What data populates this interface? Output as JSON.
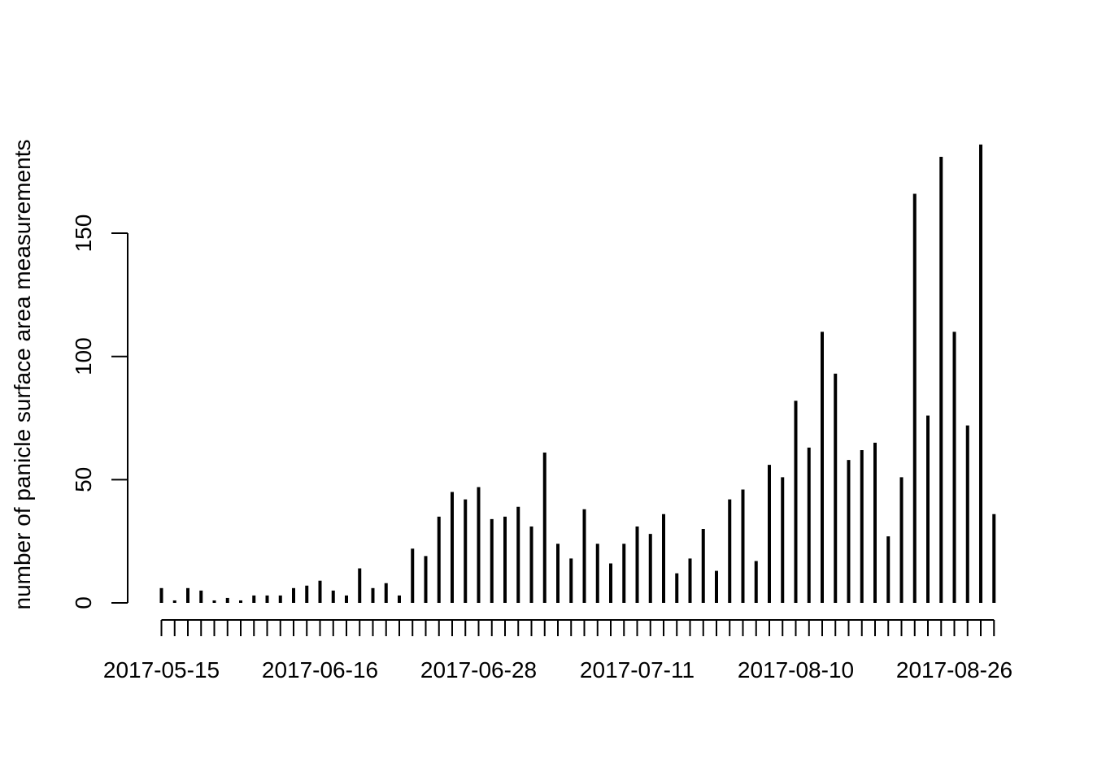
{
  "chart_data": {
    "type": "bar",
    "title": "",
    "xlabel": "",
    "ylabel": "number of panicle surface area measurements",
    "ylim": [
      0,
      186
    ],
    "yticks": [
      0,
      50,
      100,
      150
    ],
    "x_tick_labels": [
      {
        "index": 0,
        "label": "2017-05-15"
      },
      {
        "index": 12,
        "label": "2017-06-16"
      },
      {
        "index": 24,
        "label": "2017-06-28"
      },
      {
        "index": 36,
        "label": "2017-07-11"
      },
      {
        "index": 48,
        "label": "2017-08-10"
      },
      {
        "index": 60,
        "label": "2017-08-26"
      }
    ],
    "values": [
      6,
      1,
      6,
      5,
      1,
      2,
      1,
      3,
      3,
      3,
      6,
      7,
      9,
      5,
      3,
      14,
      6,
      8,
      3,
      22,
      19,
      35,
      45,
      42,
      47,
      34,
      35,
      39,
      31,
      61,
      24,
      18,
      38,
      24,
      16,
      24,
      31,
      28,
      36,
      12,
      18,
      30,
      13,
      42,
      46,
      17,
      56,
      51,
      82,
      63,
      110,
      93,
      58,
      62,
      65,
      27,
      51,
      166,
      76,
      181,
      110,
      72,
      186,
      36
    ],
    "grid": false,
    "legend": "none",
    "bar_color": "#000000"
  }
}
